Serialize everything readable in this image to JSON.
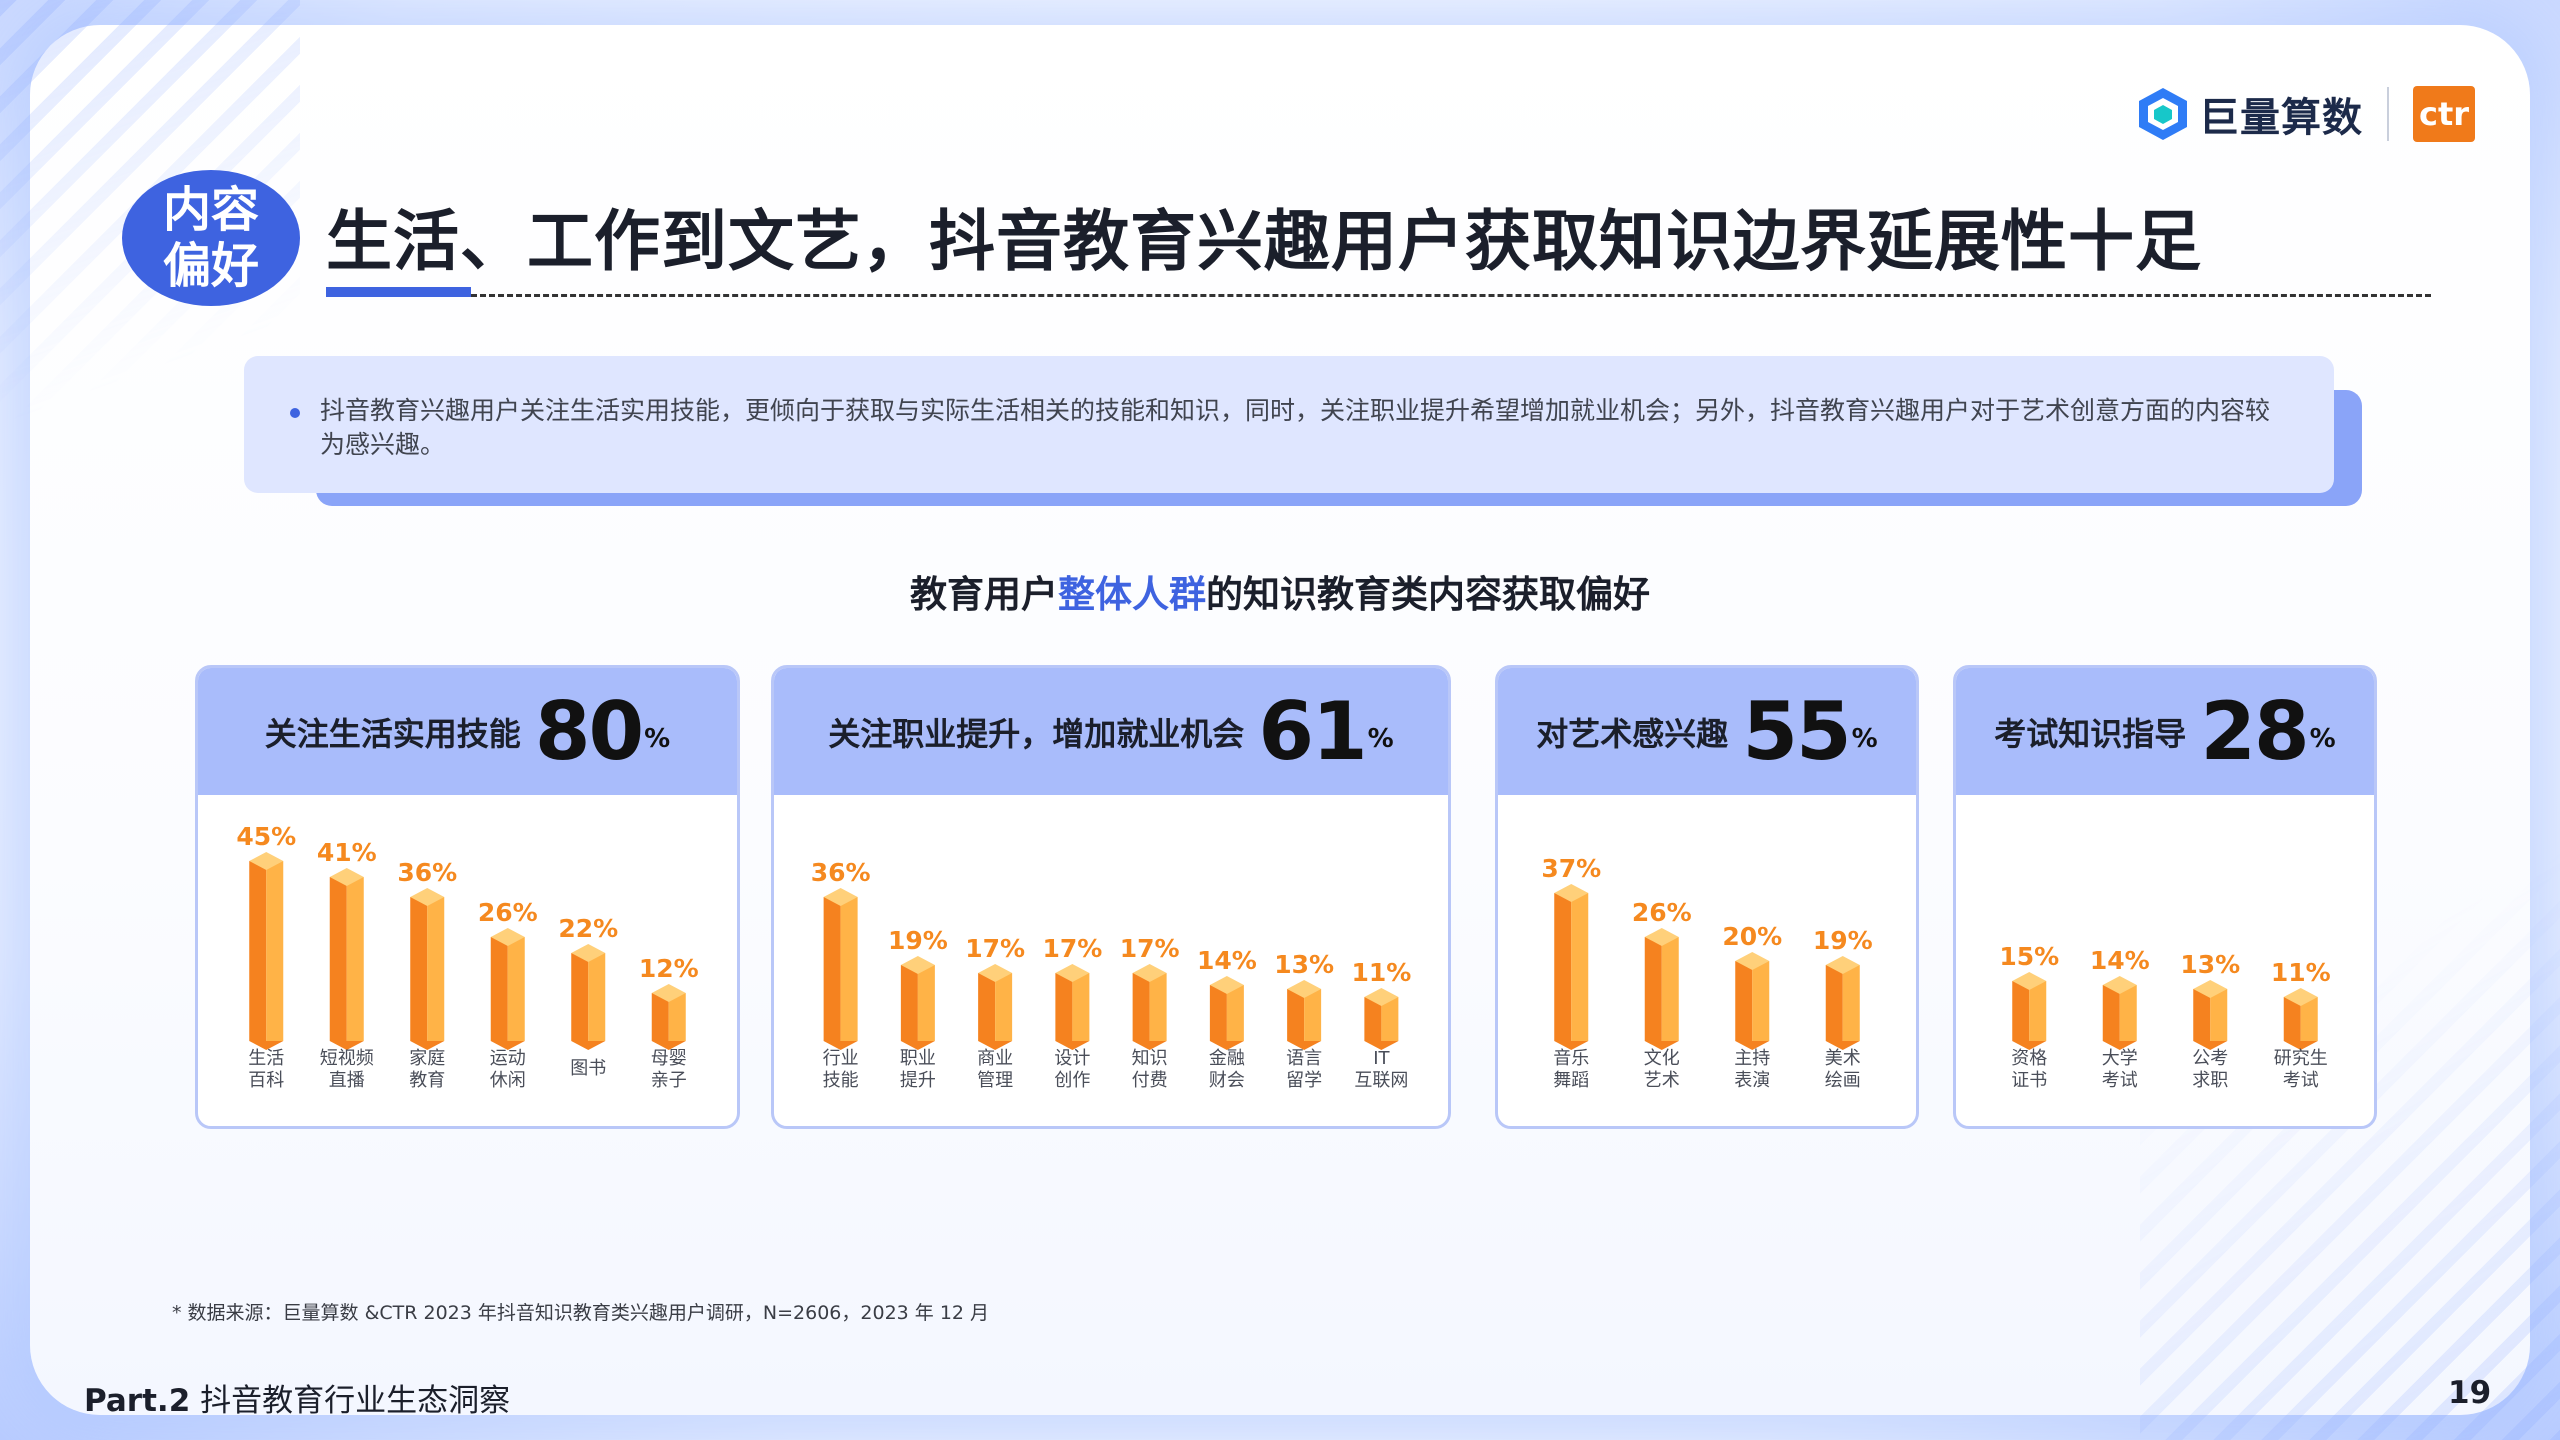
{
  "brand": {
    "logo_text": "巨量算数",
    "ctr_text": "ctr"
  },
  "badge": {
    "line1": "内容",
    "line2": "偏好"
  },
  "title": "生活、工作到文艺，抖音教育兴趣用户获取知识边界延展性十足",
  "note": "抖音教育兴趣用户关注生活实用技能，更倾向于获取与实际生活相关的技能和知识，同时，关注职业提升希望增加就业机会；另外，抖音教育兴趣用户对于艺术创意方面的内容较为感兴趣。",
  "chart_title": {
    "pre": "教育用户",
    "highlight": "整体人群",
    "post": "的知识教育类内容获取偏好"
  },
  "colors": {
    "accent": "#3e63e0",
    "header": "#a9bcfb",
    "bar_light": "#ffb347",
    "bar_dark": "#f5821f"
  },
  "chart_data": [
    {
      "type": "bar",
      "title": "关注生活实用技能",
      "headline": "80",
      "unit": "%",
      "categories": [
        [
          "生活",
          "百科"
        ],
        [
          "短视频",
          "直播"
        ],
        [
          "家庭",
          "教育"
        ],
        [
          "运动",
          "休闲"
        ],
        [
          "图书"
        ],
        [
          "母婴",
          "亲子"
        ]
      ],
      "values": [
        45,
        41,
        36,
        26,
        22,
        12
      ],
      "labels": [
        "45%",
        "41%",
        "36%",
        "26%",
        "22%",
        "12%"
      ]
    },
    {
      "type": "bar",
      "title": "关注职业提升，增加就业机会",
      "headline": "61",
      "unit": "%",
      "categories": [
        [
          "行业",
          "技能"
        ],
        [
          "职业",
          "提升"
        ],
        [
          "商业",
          "管理"
        ],
        [
          "设计",
          "创作"
        ],
        [
          "知识",
          "付费"
        ],
        [
          "金融",
          "财会"
        ],
        [
          "语言",
          "留学"
        ],
        [
          "IT",
          "互联网"
        ]
      ],
      "values": [
        36,
        19,
        17,
        17,
        17,
        14,
        13,
        11
      ],
      "labels": [
        "36%",
        "19%",
        "17%",
        "17%",
        "17%",
        "14%",
        "13%",
        "11%"
      ]
    },
    {
      "type": "bar",
      "title": "对艺术感兴趣",
      "headline": "55",
      "unit": "%",
      "categories": [
        [
          "音乐",
          "舞蹈"
        ],
        [
          "文化",
          "艺术"
        ],
        [
          "主持",
          "表演"
        ],
        [
          "美术",
          "绘画"
        ]
      ],
      "values": [
        37,
        26,
        20,
        19
      ],
      "labels": [
        "37%",
        "26%",
        "20%",
        "19%"
      ]
    },
    {
      "type": "bar",
      "title": "考试知识指导",
      "headline": "28",
      "unit": "%",
      "categories": [
        [
          "资格",
          "证书"
        ],
        [
          "大学",
          "考试"
        ],
        [
          "公考",
          "求职"
        ],
        [
          "研究生",
          "考试"
        ]
      ],
      "values": [
        15,
        14,
        13,
        11
      ],
      "labels": [
        "15%",
        "14%",
        "13%",
        "11%"
      ]
    }
  ],
  "source": "* 数据来源：巨量算数 &CTR 2023 年抖音知识教育类兴趣用户调研，N=2606，2023 年 12 月",
  "footer": {
    "part": "Part.2",
    "section": "抖音教育行业生态洞察",
    "page": "19"
  }
}
